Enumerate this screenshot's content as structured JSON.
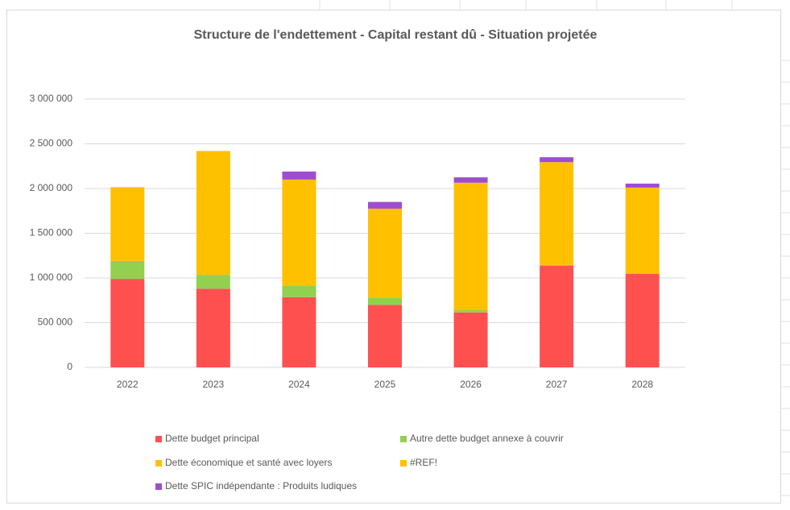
{
  "chart_data": {
    "type": "stacked_bar",
    "title": "Structure de l'endettement - Capital restant dû - Situation projetée",
    "categories": [
      "2022",
      "2023",
      "2024",
      "2025",
      "2026",
      "2027",
      "2028"
    ],
    "series": [
      {
        "name": "Dette budget principal",
        "color": "#ff5050",
        "values": [
          990000,
          880000,
          785000,
          700000,
          615000,
          1135000,
          1045000
        ]
      },
      {
        "name": "Autre dette budget annexe à couvrir",
        "color": "#92d050",
        "values": [
          200000,
          155000,
          125000,
          75000,
          25000,
          10000,
          0
        ]
      },
      {
        "name": "Dette économique et santé avec loyers",
        "color": "#ffc000",
        "values": [
          825000,
          1385000,
          1190000,
          1000000,
          1425000,
          1150000,
          965000
        ]
      },
      {
        "name": "#REF!",
        "color": "#ffc000",
        "values": [
          0,
          0,
          0,
          0,
          0,
          0,
          0
        ]
      },
      {
        "name": "Dette SPIC indépendante : Produits ludiques",
        "color": "#9e4dd1",
        "values": [
          0,
          0,
          90000,
          75000,
          60000,
          55000,
          45000
        ]
      }
    ],
    "ylim": [
      0,
      3000000
    ],
    "yticks": [
      0,
      {
        "value": 500000,
        "label": "500 000"
      },
      {
        "value": 1000000,
        "label": "1 000 000"
      },
      {
        "value": 1500000,
        "label": "1 500 000"
      },
      {
        "value": 2000000,
        "label": "2 000 000"
      },
      {
        "value": 2500000,
        "label": "2 500 000"
      },
      {
        "value": 3000000,
        "label": "3 000 000"
      }
    ],
    "grid": true,
    "legend": "bottom"
  }
}
